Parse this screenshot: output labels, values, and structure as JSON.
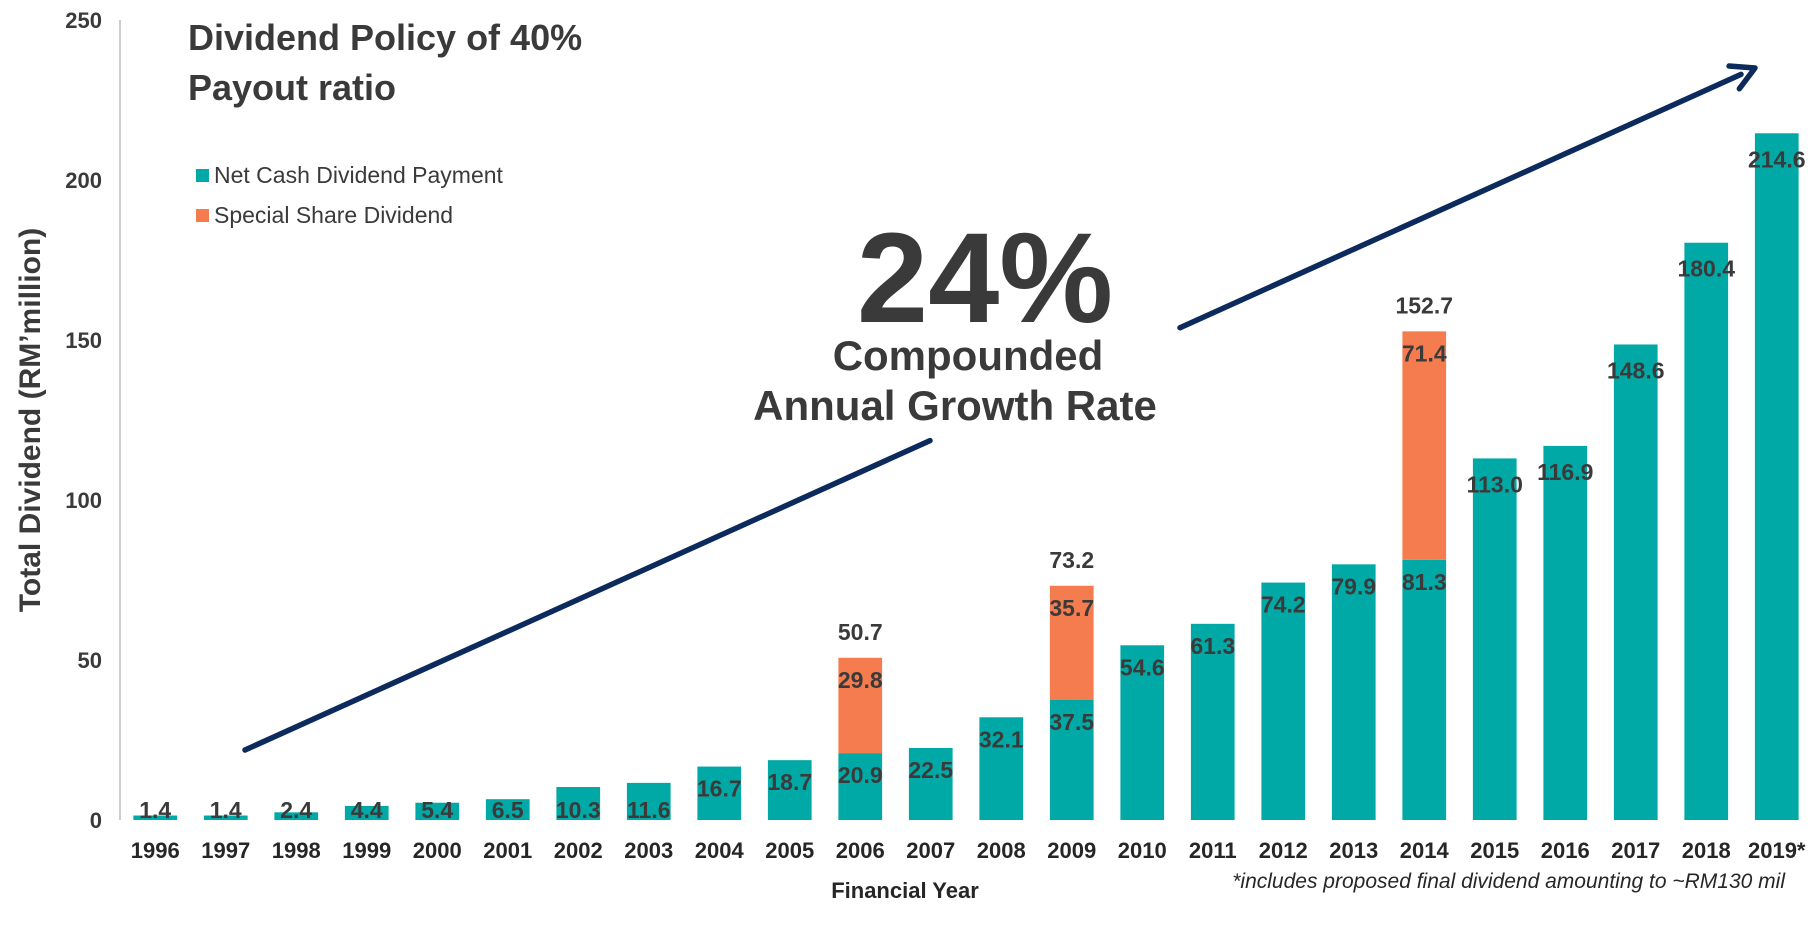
{
  "chart_data": {
    "type": "bar",
    "stacked": true,
    "title": "Dividend Policy of 40% Payout ratio",
    "title_lines": [
      "Dividend Policy of 40%",
      "Payout ratio"
    ],
    "xlabel": "Financial Year",
    "ylabel": "Total Dividend (RM’million)",
    "ylim": [
      0,
      250
    ],
    "yticks": [
      0,
      50,
      100,
      150,
      200,
      250
    ],
    "legend_position": "top-left",
    "categories": [
      "1996",
      "1997",
      "1998",
      "1999",
      "2000",
      "2001",
      "2002",
      "2003",
      "2004",
      "2005",
      "2006",
      "2007",
      "2008",
      "2009",
      "2010",
      "2011",
      "2012",
      "2013",
      "2014",
      "2015",
      "2016",
      "2017",
      "2018",
      "2019*"
    ],
    "series": [
      {
        "name": "Net Cash Dividend Payment",
        "color": "#00a9a5",
        "values": [
          1.4,
          1.4,
          2.4,
          4.4,
          5.4,
          6.5,
          10.3,
          11.6,
          16.7,
          18.7,
          20.9,
          22.5,
          32.1,
          37.5,
          54.6,
          61.3,
          74.2,
          79.9,
          81.3,
          113.0,
          116.9,
          148.6,
          180.4,
          214.6
        ],
        "labels": [
          "1.4",
          "1.4",
          "2.4",
          "4.4",
          "5.4",
          "6.5",
          "10.3",
          "11.6",
          "16.7",
          "18.7",
          "20.9",
          "22.5",
          "32.1",
          "37.5",
          "54.6",
          "61.3",
          "74.2",
          "79.9",
          "81.3",
          "113.0",
          "116.9",
          "148.6",
          "180.4",
          "214.6"
        ]
      },
      {
        "name": "Special Share Dividend",
        "color": "#f47c4e",
        "values": [
          0,
          0,
          0,
          0,
          0,
          0,
          0,
          0,
          0,
          0,
          29.8,
          0,
          0,
          35.7,
          0,
          0,
          0,
          0,
          71.4,
          0,
          0,
          0,
          0,
          0
        ],
        "labels": [
          "",
          "",
          "",
          "",
          "",
          "",
          "",
          "",
          "",
          "",
          "29.8",
          "",
          "",
          "35.7",
          "",
          "",
          "",
          "",
          "71.4",
          "",
          "",
          "",
          "",
          ""
        ]
      }
    ],
    "totals": [
      {
        "category": "2006",
        "value": 50.7,
        "label": "50.7"
      },
      {
        "category": "2009",
        "value": 73.2,
        "label": "73.2"
      },
      {
        "category": "2014",
        "value": 152.7,
        "label": "152.7"
      }
    ],
    "annotation": {
      "big": "24%",
      "lines": [
        "Compounded",
        "Annual Growth Rate"
      ],
      "arrow_color": "#0d2a5c"
    },
    "footnote": "*includes proposed final dividend amounting to ~RM130 mil"
  }
}
